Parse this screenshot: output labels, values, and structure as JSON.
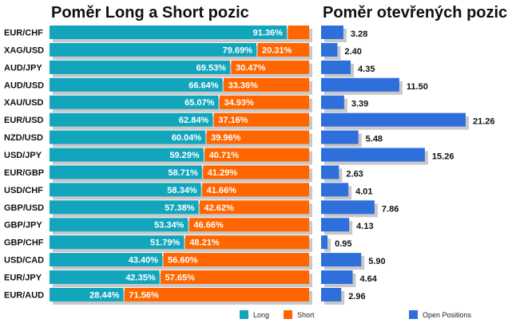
{
  "titles": {
    "left": "Poměr Long a Short pozic",
    "right": "Poměr otevřených pozic"
  },
  "colors": {
    "long": "#12a6bd",
    "short": "#ff6600",
    "open": "#2e6fdc",
    "shadow": "#c8c8c8"
  },
  "legend": {
    "long": "Long",
    "short": "Short",
    "open": "Open Positions"
  },
  "chart_data": [
    {
      "type": "bar",
      "stacked": true,
      "orientation": "horizontal",
      "title": "Poměr Long a Short pozic",
      "categories": [
        "EUR/CHF",
        "XAG/USD",
        "AUD/JPY",
        "AUD/USD",
        "XAU/USD",
        "EUR/USD",
        "NZD/USD",
        "USD/JPY",
        "EUR/GBP",
        "USD/CHF",
        "GBP/USD",
        "GBP/JPY",
        "GBP/CHF",
        "USD/CAD",
        "EUR/JPY",
        "EUR/AUD"
      ],
      "series": [
        {
          "name": "Long",
          "values": [
            91.36,
            79.69,
            69.53,
            66.64,
            65.07,
            62.84,
            60.04,
            59.29,
            58.71,
            58.34,
            57.38,
            53.34,
            51.79,
            43.4,
            42.35,
            28.44
          ]
        },
        {
          "name": "Short",
          "values": [
            8.64,
            20.31,
            30.47,
            33.36,
            34.93,
            37.16,
            39.96,
            40.71,
            41.29,
            41.66,
            42.62,
            46.66,
            48.21,
            56.6,
            57.65,
            71.56
          ]
        }
      ],
      "value_labels": {
        "long": [
          "91.36%",
          "79.69%",
          "69.53%",
          "66.64%",
          "65.07%",
          "62.84%",
          "60.04%",
          "59.29%",
          "58.71%",
          "58.34%",
          "57.38%",
          "53.34%",
          "51.79%",
          "43.40%",
          "42.35%",
          "28.44%"
        ],
        "short": [
          "",
          "20.31%",
          "30.47%",
          "33.36%",
          "34.93%",
          "37.16%",
          "39.96%",
          "40.71%",
          "41.29%",
          "41.66%",
          "42.62%",
          "46.66%",
          "48.21%",
          "56.60%",
          "57.65%",
          "71.56%"
        ]
      },
      "xlim": [
        0,
        100
      ],
      "legend": "bottom"
    },
    {
      "type": "bar",
      "orientation": "horizontal",
      "title": "Poměr otevřených pozic",
      "categories": [
        "EUR/CHF",
        "XAG/USD",
        "AUD/JPY",
        "AUD/USD",
        "XAU/USD",
        "EUR/USD",
        "NZD/USD",
        "USD/JPY",
        "EUR/GBP",
        "USD/CHF",
        "GBP/USD",
        "GBP/JPY",
        "GBP/CHF",
        "USD/CAD",
        "EUR/JPY",
        "EUR/AUD"
      ],
      "series": [
        {
          "name": "Open Positions",
          "values": [
            3.28,
            2.4,
            4.35,
            11.5,
            3.39,
            21.26,
            5.48,
            15.26,
            2.63,
            4.01,
            7.86,
            4.13,
            0.95,
            5.9,
            4.64,
            2.96
          ]
        }
      ],
      "value_labels": [
        "3.28",
        "2.40",
        "4.35",
        "11.50",
        "3.39",
        "21.26",
        "5.48",
        "15.26",
        "2.63",
        "4.01",
        "7.86",
        "4.13",
        "0.95",
        "5.90",
        "4.64",
        "2.96"
      ],
      "xlim": [
        0,
        21.26
      ],
      "legend": "bottom"
    }
  ]
}
